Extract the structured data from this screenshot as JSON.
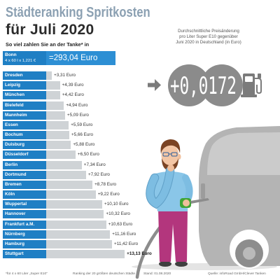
{
  "title": {
    "line1": "Städteranking Spritkosten",
    "line2": "für Juli 2020"
  },
  "subtitle": "So viel zahlen Sie an der Tanke* in",
  "reference": {
    "city": "Bonn",
    "formula": "4 x 60 l x 1,221 €",
    "total": "=293,04 Euro"
  },
  "price_change": {
    "caption_lines": [
      "Durchschnittliche Preisänderung",
      "pro Liter Super E10 gegenüber",
      "Juni 2020 in Deutschland (in Euro)"
    ],
    "value": "+0,0172"
  },
  "icons": {
    "arrow": "arrow-right-icon",
    "pump": "fuel-pump-icon"
  },
  "chart_data": {
    "type": "bar",
    "orientation": "horizontal",
    "categories": [
      "Dresden",
      "Leipzig",
      "München",
      "Bielefeld",
      "Mannheim",
      "Essen",
      "Bochum",
      "Duisburg",
      "Düsseldorf",
      "Berlin",
      "Dortmund",
      "Bremen",
      "Köln",
      "Wuppertal",
      "Hannover",
      "Frankfurt a.M.",
      "Nürnberg",
      "Hamburg",
      "Stuttgart"
    ],
    "values": [
      3.31,
      4.39,
      4.42,
      4.94,
      5.09,
      5.59,
      5.66,
      5.88,
      6.5,
      7.34,
      7.92,
      8.78,
      9.22,
      10.1,
      10.32,
      10.63,
      11.16,
      11.42,
      13.13
    ],
    "value_labels": [
      "+3,31 Euro",
      "+4,39 Euro",
      "+4,42 Euro",
      "+4,94 Euro",
      "+5,09 Euro",
      "+5,59 Euro",
      "+5,66 Euro",
      "+5,88 Euro",
      "+6,50 Euro",
      "+7,34 Euro",
      "+7,92 Euro",
      "+8,78 Euro",
      "+9,22 Euro",
      "+10,10 Euro",
      "+10,32 Euro",
      "+10,63 Euro",
      "+11,16 Euro",
      "+11,42 Euro",
      "+13,13 Euro"
    ]
  },
  "footer": {
    "note": "*für 4 x 60 Liter „Super E10“",
    "ranking": "Ranking der 20 größten deutschen Städte",
    "date": "Stand: 01.08.2020",
    "source": "Quelle: infoRoad GmbH/Clever Tanken"
  },
  "colors": {
    "accent": "#1f7fc4",
    "accent_light": "#2d8fd4",
    "bar": "#cfd3d6",
    "title_light": "#8ba0b2",
    "display": "#8b8b8b"
  }
}
